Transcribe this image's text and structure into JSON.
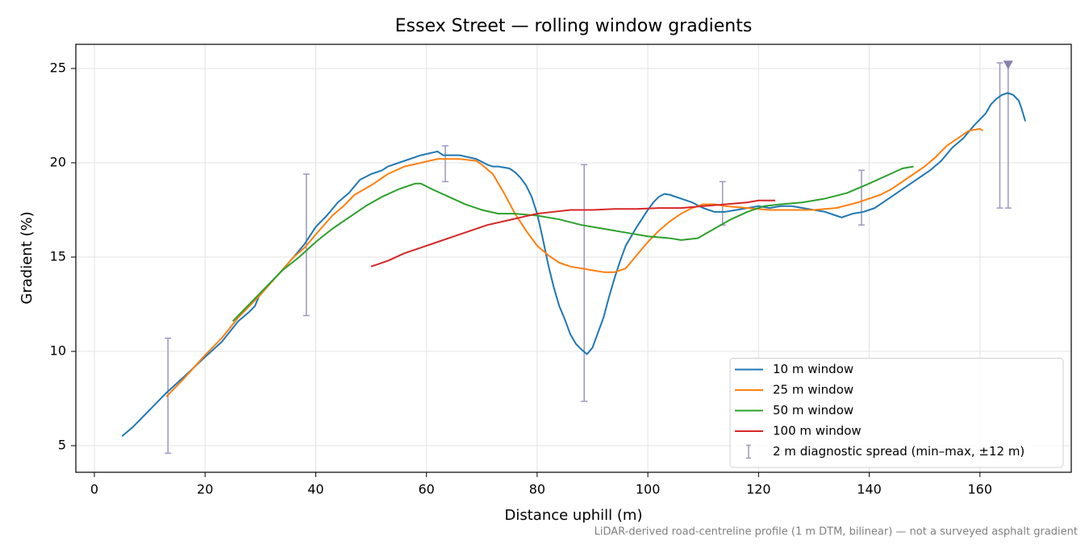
{
  "chart_data": {
    "type": "line",
    "title": "Essex Street — rolling window gradients",
    "xlabel": "Distance uphill (m)",
    "ylabel": "Gradient (%)",
    "footnote": "LiDAR-derived road-centreline profile (1 m DTM, bilinear) — not a surveyed asphalt gradient",
    "xlim": [
      -3.35,
      176.5
    ],
    "ylim": [
      3.59,
      26.28
    ],
    "xticks": [
      0,
      20,
      40,
      60,
      80,
      100,
      120,
      140,
      160
    ],
    "yticks": [
      5,
      10,
      15,
      20,
      25
    ],
    "grid": true,
    "legend": "lower right",
    "series": [
      {
        "name": "10 m window",
        "color": "#1f77b4",
        "x": [
          5,
          7,
          10,
          13,
          16,
          20,
          23,
          26,
          28,
          29,
          30,
          33,
          36,
          38,
          40,
          42,
          44,
          46,
          48,
          50,
          52,
          53,
          56,
          59,
          62,
          63,
          66,
          69,
          71,
          72,
          73,
          75,
          76,
          77,
          78,
          79,
          80,
          81,
          82,
          83,
          84,
          85,
          86,
          87,
          88,
          89,
          90,
          91,
          92,
          93,
          94,
          95,
          96,
          98,
          100,
          101,
          102,
          103,
          104,
          106,
          108,
          110,
          112,
          114,
          116,
          118,
          120,
          122,
          124,
          126,
          128,
          130,
          132,
          134,
          135,
          137,
          139,
          141,
          143,
          145,
          147,
          149,
          151,
          153,
          155,
          157,
          159,
          161,
          162,
          163,
          164,
          165,
          166,
          167,
          167.5,
          168.2
        ],
        "values": [
          5.5,
          6.0,
          6.9,
          7.8,
          8.6,
          9.7,
          10.5,
          11.6,
          12.1,
          12.4,
          13.1,
          14.0,
          15.0,
          15.7,
          16.6,
          17.2,
          17.9,
          18.4,
          19.1,
          19.4,
          19.6,
          19.8,
          20.1,
          20.4,
          20.6,
          20.4,
          20.4,
          20.2,
          19.9,
          19.8,
          19.8,
          19.7,
          19.5,
          19.2,
          18.8,
          18.2,
          17.3,
          16.0,
          14.6,
          13.4,
          12.4,
          11.7,
          10.9,
          10.4,
          10.1,
          9.85,
          10.2,
          11.0,
          11.8,
          12.9,
          13.9,
          14.8,
          15.6,
          16.6,
          17.5,
          17.9,
          18.2,
          18.35,
          18.3,
          18.1,
          17.9,
          17.6,
          17.4,
          17.4,
          17.5,
          17.6,
          17.7,
          17.6,
          17.7,
          17.7,
          17.6,
          17.5,
          17.4,
          17.2,
          17.1,
          17.3,
          17.4,
          17.6,
          18.0,
          18.4,
          18.8,
          19.2,
          19.6,
          20.1,
          20.8,
          21.3,
          22.0,
          22.6,
          23.1,
          23.4,
          23.6,
          23.7,
          23.6,
          23.3,
          22.9,
          22.2
        ]
      },
      {
        "name": "25 m window",
        "color": "#ff7f0e",
        "x": [
          13,
          16,
          20,
          23,
          26,
          30,
          33,
          36,
          38,
          40,
          43,
          45,
          47,
          50,
          53,
          56,
          59,
          62,
          66,
          69,
          70,
          72,
          74,
          76,
          78,
          80,
          82,
          84,
          86,
          88,
          90,
          92,
          94,
          96,
          98,
          100,
          102,
          104,
          106,
          108,
          110,
          112,
          114,
          118,
          122,
          126,
          130,
          134,
          138,
          140,
          142,
          144,
          146,
          148,
          150,
          152,
          154,
          156,
          158,
          160,
          160.5
        ],
        "values": [
          7.6,
          8.5,
          9.8,
          10.7,
          11.8,
          13.0,
          14.0,
          15.0,
          15.5,
          16.2,
          17.2,
          17.7,
          18.3,
          18.8,
          19.4,
          19.8,
          20.0,
          20.2,
          20.2,
          20.1,
          19.9,
          19.4,
          18.4,
          17.3,
          16.4,
          15.6,
          15.1,
          14.7,
          14.5,
          14.4,
          14.3,
          14.2,
          14.2,
          14.4,
          15.1,
          15.8,
          16.4,
          16.9,
          17.3,
          17.6,
          17.8,
          17.8,
          17.7,
          17.6,
          17.5,
          17.5,
          17.5,
          17.6,
          17.9,
          18.1,
          18.3,
          18.6,
          19.0,
          19.4,
          19.8,
          20.3,
          20.9,
          21.3,
          21.7,
          21.8,
          21.7
        ]
      },
      {
        "name": "50 m window",
        "color": "#2ca02c",
        "x": [
          25,
          28,
          31,
          34,
          37,
          40,
          43,
          46,
          49,
          52,
          55,
          58,
          59,
          61,
          64,
          67,
          70,
          73,
          76,
          80,
          84,
          88,
          92,
          96,
          100,
          104,
          106,
          109,
          112,
          115,
          118,
          121,
          124,
          128,
          132,
          136,
          140,
          143,
          146,
          148
        ],
        "values": [
          11.6,
          12.5,
          13.4,
          14.3,
          15.0,
          15.8,
          16.5,
          17.1,
          17.7,
          18.2,
          18.6,
          18.9,
          18.9,
          18.6,
          18.2,
          17.8,
          17.5,
          17.3,
          17.3,
          17.2,
          17.0,
          16.7,
          16.5,
          16.3,
          16.1,
          16.0,
          15.9,
          16.0,
          16.5,
          17.0,
          17.4,
          17.7,
          17.8,
          17.9,
          18.1,
          18.4,
          18.9,
          19.3,
          19.7,
          19.8
        ]
      },
      {
        "name": "100 m window",
        "color": "#d62728",
        "x": [
          50,
          53,
          56,
          59,
          62,
          65,
          68,
          71,
          74,
          77,
          80,
          83,
          86,
          90,
          94,
          98,
          102,
          106,
          110,
          114,
          118,
          120,
          123
        ],
        "values": [
          14.5,
          14.8,
          15.2,
          15.5,
          15.8,
          16.1,
          16.4,
          16.7,
          16.9,
          17.1,
          17.3,
          17.4,
          17.5,
          17.5,
          17.55,
          17.55,
          17.6,
          17.6,
          17.7,
          17.8,
          17.9,
          18.0,
          18.0
        ]
      }
    ],
    "error_bars": {
      "name": "2 m diagnostic spread (min–max, ±12 m)",
      "color": "#9a98c0",
      "x": [
        13.3,
        38.3,
        63.4,
        88.5,
        113.5,
        138.6,
        163.6,
        165.1
      ],
      "low": [
        4.6,
        11.9,
        19.0,
        7.35,
        16.7,
        16.7,
        17.6,
        17.6
      ],
      "high": [
        10.7,
        19.4,
        20.9,
        19.9,
        19.0,
        19.6,
        25.3,
        25.3
      ]
    },
    "peak_marker": {
      "x": 165.1,
      "y": 25.2,
      "color": "#8c7fb0"
    }
  }
}
